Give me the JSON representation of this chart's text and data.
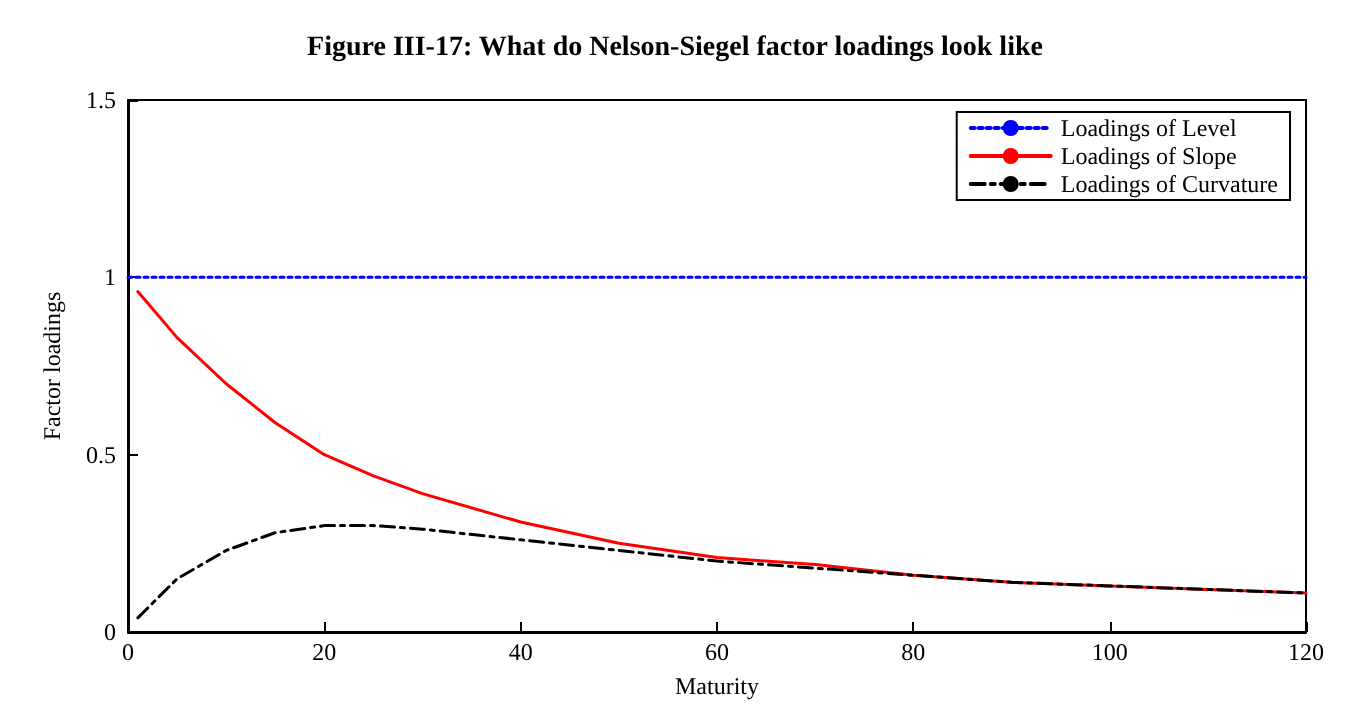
{
  "chart_data": {
    "type": "line",
    "title": "Figure III-17: What do Nelson-Siegel factor loadings look like",
    "xlabel": "Maturity",
    "ylabel": "Factor loadings",
    "xlim": [
      0,
      120
    ],
    "xticks": [
      0,
      20,
      40,
      60,
      80,
      100,
      120
    ],
    "ylim": [
      0,
      1.5
    ],
    "yticks": [
      0,
      0.5,
      1,
      1.5
    ],
    "grid": false,
    "legend": "top right",
    "marker": "none",
    "series": [
      {
        "name": "Loadings of Level",
        "color": "#0000ff",
        "line_style": "dotted",
        "x": [
          0,
          120
        ],
        "values": [
          1,
          1
        ]
      },
      {
        "name": "Loadings of Slope",
        "color": "#ff0000",
        "line_style": "solid",
        "x": [
          1,
          5,
          10,
          15,
          20,
          25,
          30,
          40,
          50,
          60,
          70,
          80,
          90,
          100,
          110,
          120
        ],
        "values": [
          0.96,
          0.83,
          0.7,
          0.59,
          0.5,
          0.44,
          0.39,
          0.31,
          0.25,
          0.21,
          0.19,
          0.16,
          0.14,
          0.13,
          0.12,
          0.11
        ]
      },
      {
        "name": "Loadings of Curvature",
        "color": "#000000",
        "line_style": "dashdot",
        "x": [
          1,
          5,
          10,
          15,
          20,
          25,
          30,
          40,
          50,
          60,
          70,
          80,
          90,
          100,
          110,
          120
        ],
        "values": [
          0.04,
          0.15,
          0.23,
          0.28,
          0.3,
          0.3,
          0.29,
          0.26,
          0.23,
          0.2,
          0.18,
          0.16,
          0.14,
          0.13,
          0.12,
          0.11
        ]
      }
    ]
  }
}
